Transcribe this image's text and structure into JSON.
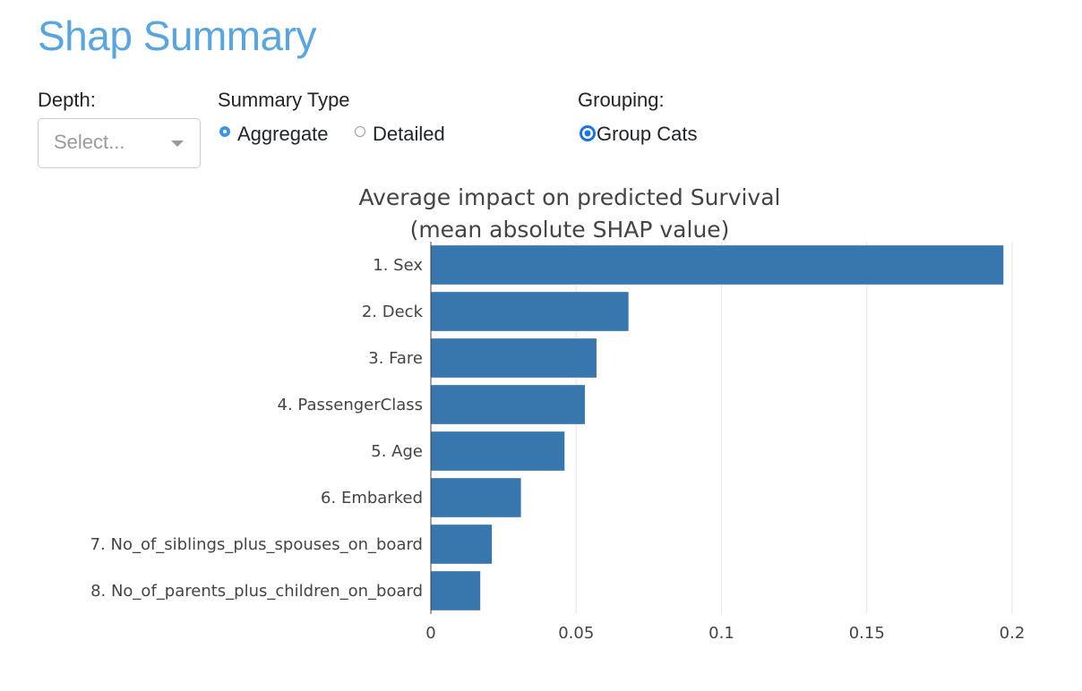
{
  "page": {
    "title": "Shap Summary",
    "accent_color": "#58a5df"
  },
  "controls": {
    "depth": {
      "label": "Depth:",
      "placeholder": "Select...",
      "icon": "chevron-down-icon"
    },
    "summary_type": {
      "label": "Summary Type",
      "options": [
        {
          "label": "Aggregate",
          "checked": true
        },
        {
          "label": "Detailed",
          "checked": false
        }
      ]
    },
    "grouping": {
      "label": "Grouping:",
      "option": {
        "label": "Group Cats",
        "checked": true
      }
    }
  },
  "chart_data": {
    "type": "bar",
    "orientation": "horizontal",
    "title": [
      "Average impact on predicted Survival",
      "(mean absolute SHAP value)"
    ],
    "categories": [
      "1. Sex",
      "2. Deck",
      "3. Fare",
      "4. PassengerClass",
      "5. Age",
      "6. Embarked",
      "7. No_of_siblings_plus_spouses_on_board",
      "8. No_of_parents_plus_children_on_board"
    ],
    "values": [
      0.197,
      0.068,
      0.057,
      0.053,
      0.046,
      0.031,
      0.021,
      0.017
    ],
    "xlim": [
      0,
      0.2
    ],
    "xticks": [
      0,
      0.05,
      0.1,
      0.15,
      0.2
    ],
    "xtick_labels": [
      "0",
      "0.05",
      "0.1",
      "0.15",
      "0.2"
    ],
    "grid": "vertical",
    "bar_color": "#3877ae"
  }
}
